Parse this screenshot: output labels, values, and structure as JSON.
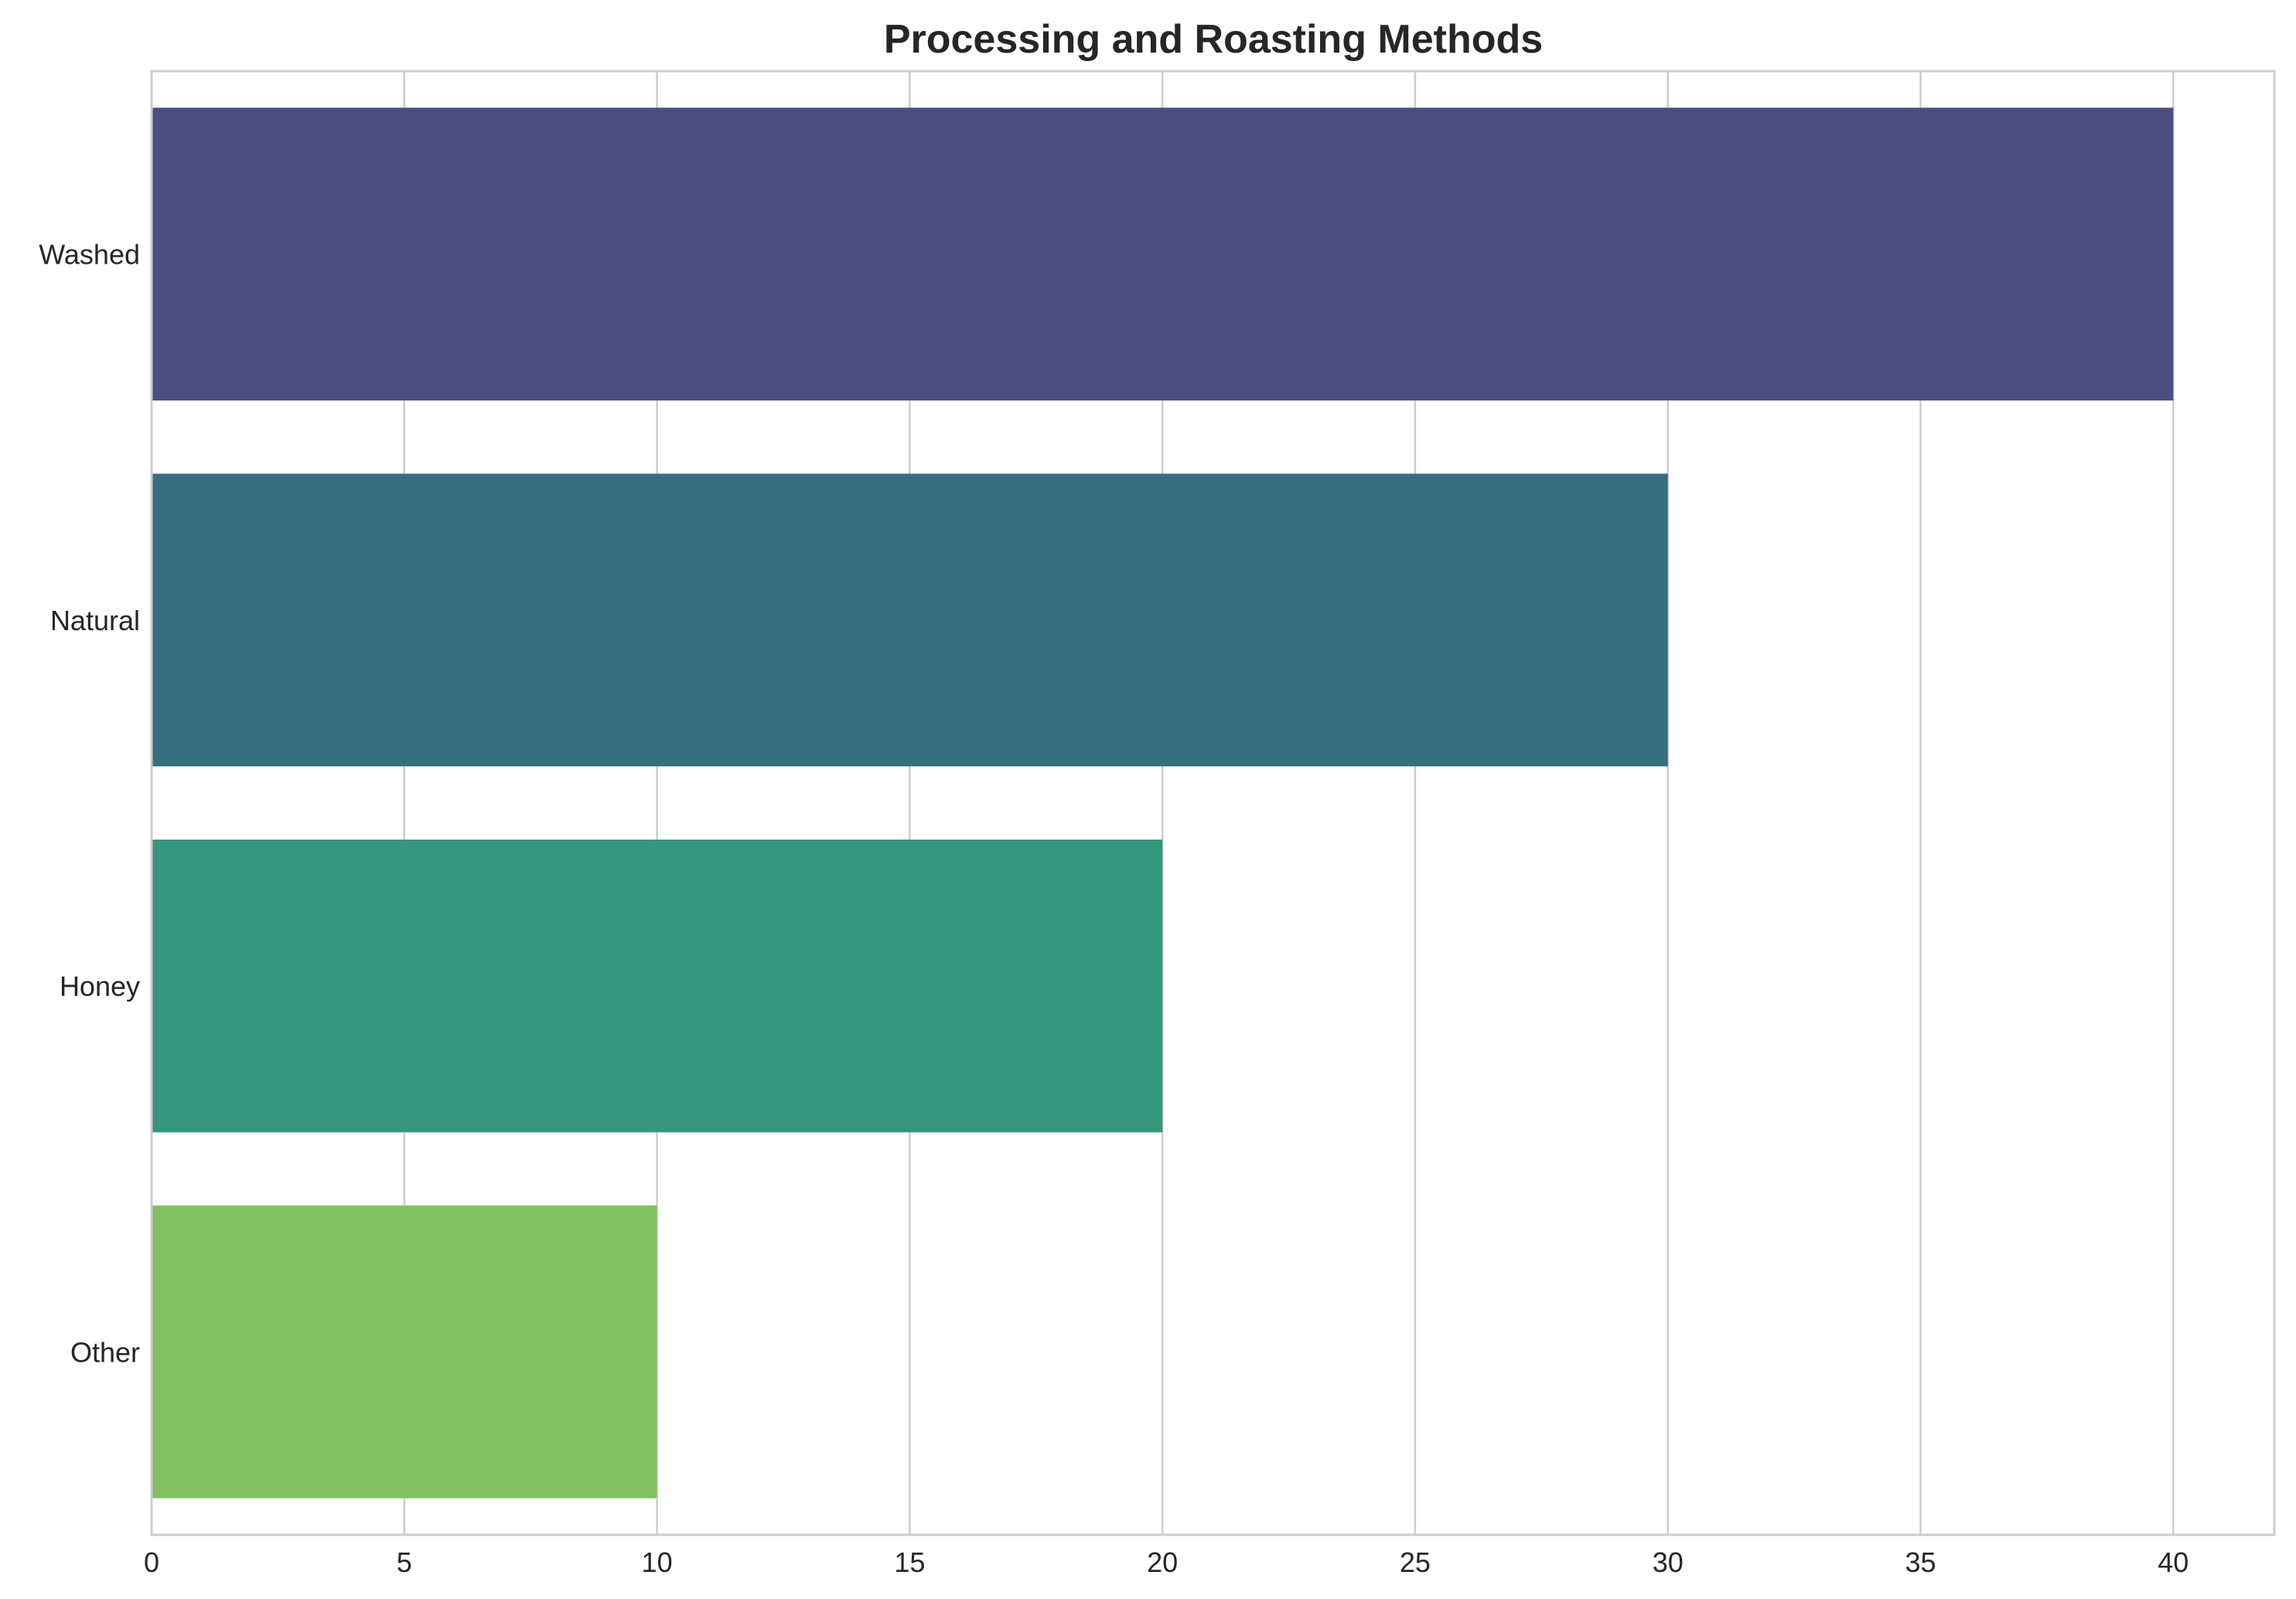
{
  "chart_data": {
    "type": "bar",
    "orientation": "horizontal",
    "title": "Processing and Roasting Methods",
    "xlabel": "",
    "ylabel": "",
    "categories": [
      "Washed",
      "Natural",
      "Honey",
      "Other"
    ],
    "values": [
      40,
      30,
      20,
      10
    ],
    "colors": [
      "#4b4d7e",
      "#367080",
      "#34977b",
      "#82c162"
    ],
    "xlim": [
      0,
      42
    ],
    "xticks": [
      0,
      5,
      10,
      15,
      20,
      25,
      30,
      35,
      40
    ],
    "grid": true,
    "legend": "none"
  }
}
